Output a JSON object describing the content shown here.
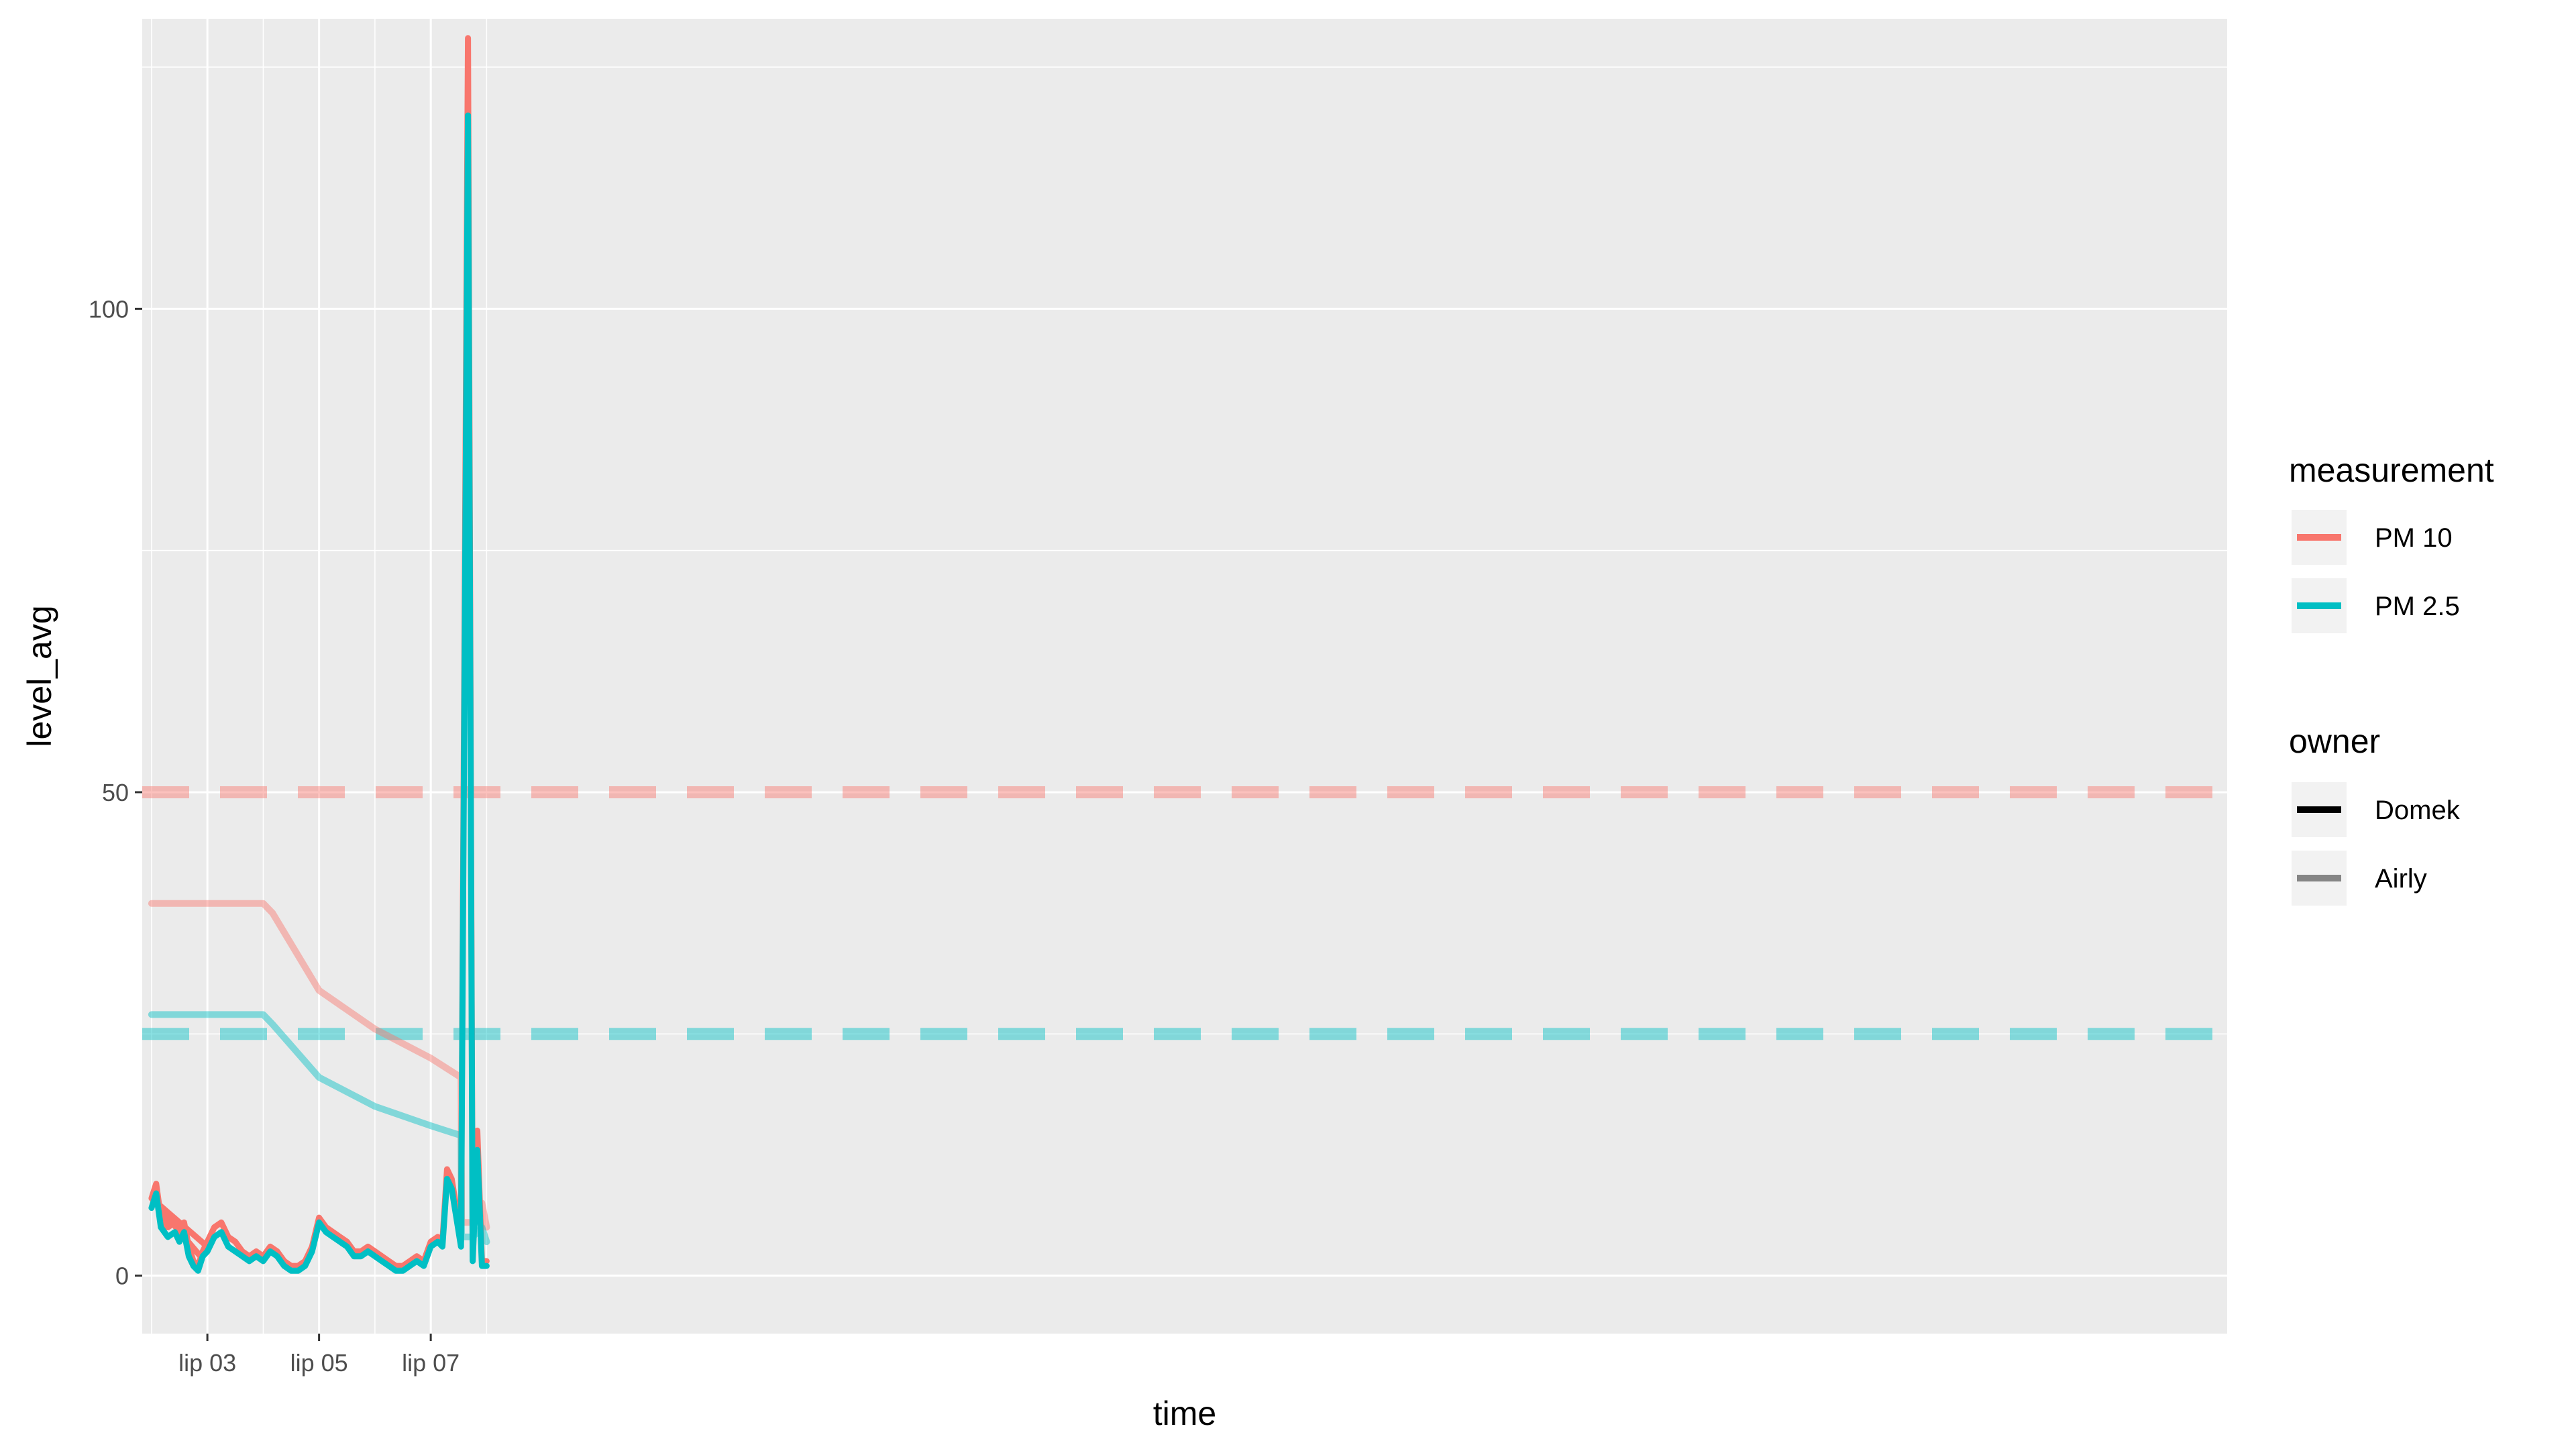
{
  "chart_data": {
    "type": "line",
    "xlabel": "time",
    "ylabel": "level_avg",
    "x_range": [
      "2020-07-01T20:00",
      "2020-08-08T04:00"
    ],
    "x_ticks": [
      {
        "at": "2020-07-03",
        "label": "lip 03"
      },
      {
        "at": "2020-07-05",
        "label": "lip 05"
      },
      {
        "at": "2020-07-07",
        "label": "lip 07"
      }
    ],
    "ylim": [
      -6,
      130
    ],
    "y_ticks": [
      0,
      50,
      100
    ],
    "grid": true,
    "legend_position": "right",
    "colors": {
      "pm10": "#F8766D",
      "pm25": "#00BFC4",
      "panel": "#EBEBEB",
      "grid": "#FFFFFF"
    },
    "legends": [
      {
        "title": "measurement",
        "entries": [
          {
            "label": "PM 10",
            "color": "#F8766D",
            "opacity": 1
          },
          {
            "label": "PM 2.5",
            "color": "#00BFC4",
            "opacity": 1
          }
        ]
      },
      {
        "title": "owner",
        "entries": [
          {
            "label": "Domek",
            "color": "#000000",
            "opacity": 1
          },
          {
            "label": "Airly",
            "color": "#000000",
            "opacity": 0.45
          }
        ]
      }
    ],
    "reference_lines": [
      {
        "measurement": "PM 10",
        "y": 50,
        "style": "dashed"
      },
      {
        "measurement": "PM 2.5",
        "y": 25,
        "style": "dashed"
      }
    ],
    "series": [
      {
        "measurement": "PM 10",
        "owner": "Airly",
        "points": [
          [
            "2020-07-02 00:00",
            38.5
          ],
          [
            "2020-07-04 00:00",
            38.5
          ],
          [
            "2020-07-04 04:00",
            37.5
          ],
          [
            "2020-07-05 00:00",
            29.5
          ],
          [
            "2020-07-06 00:00",
            25.5
          ],
          [
            "2020-07-07 00:00",
            22.5
          ],
          [
            "2020-07-07 13:00",
            20.5
          ],
          [
            "2020-07-07 13:15",
            5.5
          ],
          [
            "2020-07-07 18:00",
            5.5
          ],
          [
            "2020-07-07 20:00",
            6.5
          ],
          [
            "2020-07-07 22:00",
            7.5
          ],
          [
            "2020-07-08 00:00",
            5.0
          ]
        ]
      },
      {
        "measurement": "PM 2.5",
        "owner": "Airly",
        "points": [
          [
            "2020-07-02 00:00",
            27.0
          ],
          [
            "2020-07-04 00:00",
            27.0
          ],
          [
            "2020-07-04 04:00",
            26.0
          ],
          [
            "2020-07-05 00:00",
            20.5
          ],
          [
            "2020-07-06 00:00",
            17.5
          ],
          [
            "2020-07-07 00:00",
            15.5
          ],
          [
            "2020-07-07 13:00",
            14.5
          ],
          [
            "2020-07-07 13:15",
            4.0
          ],
          [
            "2020-07-07 18:00",
            4.0
          ],
          [
            "2020-07-07 20:00",
            4.5
          ],
          [
            "2020-07-07 22:00",
            5.0
          ],
          [
            "2020-07-08 00:00",
            3.5
          ]
        ]
      },
      {
        "measurement": "PM 10",
        "owner": "Domek",
        "points": [
          [
            "2020-07-02 00:00",
            8.0
          ],
          [
            "2020-07-02 02:00",
            9.5
          ],
          [
            "2020-07-02 04:00",
            6.0
          ],
          [
            "2020-07-02 07:00",
            5.0
          ],
          [
            "2020-07-02 10:00",
            5.5
          ],
          [
            "2020-07-02 12:00",
            4.5
          ],
          [
            "2020-07-02 14:00",
            5.5
          ],
          [
            "2020-07-02 16:00",
            3.0
          ],
          [
            "2020-07-02 18:00",
            1.5
          ],
          [
            "2020-07-02 20:00",
            1.0
          ],
          [
            "2020-07-02 22:00",
            2.5
          ],
          [
            "2020-07-03 00:00",
            3.0
          ],
          [
            "2020-07-02 00:00",
            8.0
          ],
          [
            "2020-07-02 21:00",
            2.0
          ],
          [
            "2020-07-03 00:00",
            3.5
          ],
          [
            "2020-07-03 03:00",
            5.0
          ],
          [
            "2020-07-03 06:00",
            5.5
          ],
          [
            "2020-07-03 09:00",
            4.0
          ],
          [
            "2020-07-03 12:00",
            3.5
          ],
          [
            "2020-07-03 15:00",
            2.5
          ],
          [
            "2020-07-03 18:00",
            2.0
          ],
          [
            "2020-07-03 21:00",
            2.5
          ],
          [
            "2020-07-04 00:00",
            2.0
          ],
          [
            "2020-07-04 03:00",
            3.0
          ],
          [
            "2020-07-04 06:00",
            2.5
          ],
          [
            "2020-07-04 09:00",
            1.5
          ],
          [
            "2020-07-04 12:00",
            1.0
          ],
          [
            "2020-07-04 15:00",
            1.0
          ],
          [
            "2020-07-04 18:00",
            1.5
          ],
          [
            "2020-07-04 21:00",
            3.0
          ],
          [
            "2020-07-05 00:00",
            6.0
          ],
          [
            "2020-07-05 03:00",
            5.0
          ],
          [
            "2020-07-05 06:00",
            4.5
          ],
          [
            "2020-07-05 09:00",
            4.0
          ],
          [
            "2020-07-05 12:00",
            3.5
          ],
          [
            "2020-07-05 15:00",
            2.5
          ],
          [
            "2020-07-05 18:00",
            2.5
          ],
          [
            "2020-07-05 21:00",
            3.0
          ],
          [
            "2020-07-06 00:00",
            2.5
          ],
          [
            "2020-07-06 03:00",
            2.0
          ],
          [
            "2020-07-06 06:00",
            1.5
          ],
          [
            "2020-07-06 09:00",
            1.0
          ],
          [
            "2020-07-06 12:00",
            1.0
          ],
          [
            "2020-07-06 15:00",
            1.5
          ],
          [
            "2020-07-06 18:00",
            2.0
          ],
          [
            "2020-07-06 21:00",
            1.5
          ],
          [
            "2020-07-07 00:00",
            3.5
          ],
          [
            "2020-07-07 03:00",
            4.0
          ],
          [
            "2020-07-07 05:00",
            3.5
          ],
          [
            "2020-07-07 07:00",
            11.0
          ],
          [
            "2020-07-07 09:00",
            10.0
          ],
          [
            "2020-07-07 11:00",
            7.0
          ],
          [
            "2020-07-07 13:00",
            3.5
          ],
          [
            "2020-07-07 16:00",
            128.0
          ],
          [
            "2020-07-07 18:00",
            2.0
          ],
          [
            "2020-07-07 20:00",
            15.0
          ],
          [
            "2020-07-07 22:00",
            1.5
          ],
          [
            "2020-07-08 00:00",
            1.5
          ]
        ]
      },
      {
        "measurement": "PM 2.5",
        "owner": "Domek",
        "points": [
          [
            "2020-07-02 00:00",
            7.0
          ],
          [
            "2020-07-02 02:00",
            8.5
          ],
          [
            "2020-07-02 04:00",
            5.0
          ],
          [
            "2020-07-02 07:00",
            4.0
          ],
          [
            "2020-07-02 10:00",
            4.5
          ],
          [
            "2020-07-02 12:00",
            3.5
          ],
          [
            "2020-07-02 14:00",
            4.5
          ],
          [
            "2020-07-02 16:00",
            2.0
          ],
          [
            "2020-07-02 18:00",
            1.0
          ],
          [
            "2020-07-02 20:00",
            0.5
          ],
          [
            "2020-07-02 22:00",
            2.0
          ],
          [
            "2020-07-03 00:00",
            2.5
          ],
          [
            "2020-07-03 03:00",
            4.0
          ],
          [
            "2020-07-03 06:00",
            4.5
          ],
          [
            "2020-07-03 09:00",
            3.0
          ],
          [
            "2020-07-03 12:00",
            2.5
          ],
          [
            "2020-07-03 15:00",
            2.0
          ],
          [
            "2020-07-03 18:00",
            1.5
          ],
          [
            "2020-07-03 21:00",
            2.0
          ],
          [
            "2020-07-04 00:00",
            1.5
          ],
          [
            "2020-07-04 03:00",
            2.5
          ],
          [
            "2020-07-04 06:00",
            2.0
          ],
          [
            "2020-07-04 09:00",
            1.0
          ],
          [
            "2020-07-04 12:00",
            0.5
          ],
          [
            "2020-07-04 15:00",
            0.5
          ],
          [
            "2020-07-04 18:00",
            1.0
          ],
          [
            "2020-07-04 21:00",
            2.5
          ],
          [
            "2020-07-05 00:00",
            5.5
          ],
          [
            "2020-07-05 03:00",
            4.5
          ],
          [
            "2020-07-05 06:00",
            4.0
          ],
          [
            "2020-07-05 09:00",
            3.5
          ],
          [
            "2020-07-05 12:00",
            3.0
          ],
          [
            "2020-07-05 15:00",
            2.0
          ],
          [
            "2020-07-05 18:00",
            2.0
          ],
          [
            "2020-07-05 21:00",
            2.5
          ],
          [
            "2020-07-06 00:00",
            2.0
          ],
          [
            "2020-07-06 03:00",
            1.5
          ],
          [
            "2020-07-06 06:00",
            1.0
          ],
          [
            "2020-07-06 09:00",
            0.5
          ],
          [
            "2020-07-06 12:00",
            0.5
          ],
          [
            "2020-07-06 15:00",
            1.0
          ],
          [
            "2020-07-06 18:00",
            1.5
          ],
          [
            "2020-07-06 21:00",
            1.0
          ],
          [
            "2020-07-07 00:00",
            3.0
          ],
          [
            "2020-07-07 03:00",
            3.5
          ],
          [
            "2020-07-07 05:00",
            3.0
          ],
          [
            "2020-07-07 07:00",
            10.0
          ],
          [
            "2020-07-07 09:00",
            9.0
          ],
          [
            "2020-07-07 11:00",
            6.0
          ],
          [
            "2020-07-07 13:00",
            3.0
          ],
          [
            "2020-07-07 16:00",
            120.0
          ],
          [
            "2020-07-07 18:00",
            1.5
          ],
          [
            "2020-07-07 20:00",
            13.0
          ],
          [
            "2020-07-07 22:00",
            1.0
          ],
          [
            "2020-07-08 00:00",
            1.0
          ]
        ]
      }
    ]
  }
}
